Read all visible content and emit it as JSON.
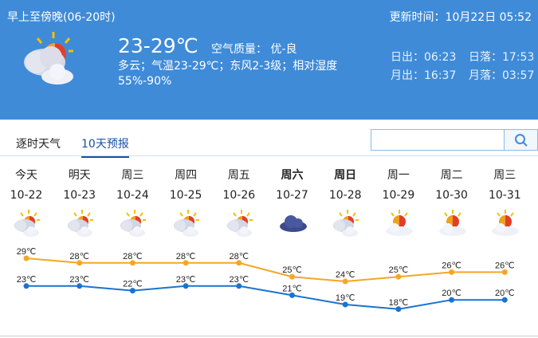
{
  "header": {
    "period": "早上至傍晚(06-20时)",
    "update_time": "更新时间：10月22日 05:52",
    "temperature": "23-29℃",
    "air_quality": "空气质量： 优-良",
    "description": "多云；气温23-29℃；东风2-3级；相对湿度55%-90%",
    "sunrise": "日出：06:23",
    "sunset": "日落：17:53",
    "moonrise": "月出：16:37",
    "moonset": "月落：03:57",
    "icon": "partly-cloudy"
  },
  "tabs": [
    {
      "label": "逐时天气",
      "active": false
    },
    {
      "label": "10天预报",
      "active": true
    }
  ],
  "search": {
    "placeholder": "",
    "value": "",
    "icon": "search-icon"
  },
  "colors": {
    "header_bg": "#3f8bd8",
    "high": "#f5a623",
    "low": "#1a73d0",
    "tab_active": "#1a4fa0"
  },
  "days": [
    {
      "name": "今天",
      "date": "10-22",
      "icon": "partly-cloudy",
      "high": "29℃",
      "low": "23℃",
      "bold": false
    },
    {
      "name": "明天",
      "date": "10-23",
      "icon": "partly-cloudy",
      "high": "28℃",
      "low": "23℃",
      "bold": false
    },
    {
      "name": "周三",
      "date": "10-24",
      "icon": "partly-cloudy",
      "high": "28℃",
      "low": "22℃",
      "bold": false
    },
    {
      "name": "周四",
      "date": "10-25",
      "icon": "partly-cloudy",
      "high": "28℃",
      "low": "23℃",
      "bold": false
    },
    {
      "name": "周五",
      "date": "10-26",
      "icon": "partly-cloudy",
      "high": "28℃",
      "low": "23℃",
      "bold": false
    },
    {
      "name": "周六",
      "date": "10-27",
      "icon": "overcast",
      "high": "25℃",
      "low": "21℃",
      "bold": true
    },
    {
      "name": "周日",
      "date": "10-28",
      "icon": "partly-cloudy",
      "high": "24℃",
      "low": "19℃",
      "bold": true
    },
    {
      "name": "周一",
      "date": "10-29",
      "icon": "sunny-cloud",
      "high": "25℃",
      "low": "18℃",
      "bold": false
    },
    {
      "name": "周二",
      "date": "10-30",
      "icon": "sunny-cloud",
      "high": "26℃",
      "low": "20℃",
      "bold": false
    },
    {
      "name": "周三",
      "date": "10-31",
      "icon": "sunny-cloud",
      "high": "26℃",
      "low": "20℃",
      "bold": false
    }
  ],
  "chart_data": {
    "type": "line",
    "categories": [
      "10-22",
      "10-23",
      "10-24",
      "10-25",
      "10-26",
      "10-27",
      "10-28",
      "10-29",
      "10-30",
      "10-31"
    ],
    "series": [
      {
        "values": [
          29,
          28,
          28,
          28,
          28,
          25,
          24,
          25,
          26,
          26
        ]
      },
      {
        "values": [
          23,
          23,
          22,
          23,
          23,
          21,
          19,
          18,
          20,
          20
        ]
      }
    ]
  }
}
